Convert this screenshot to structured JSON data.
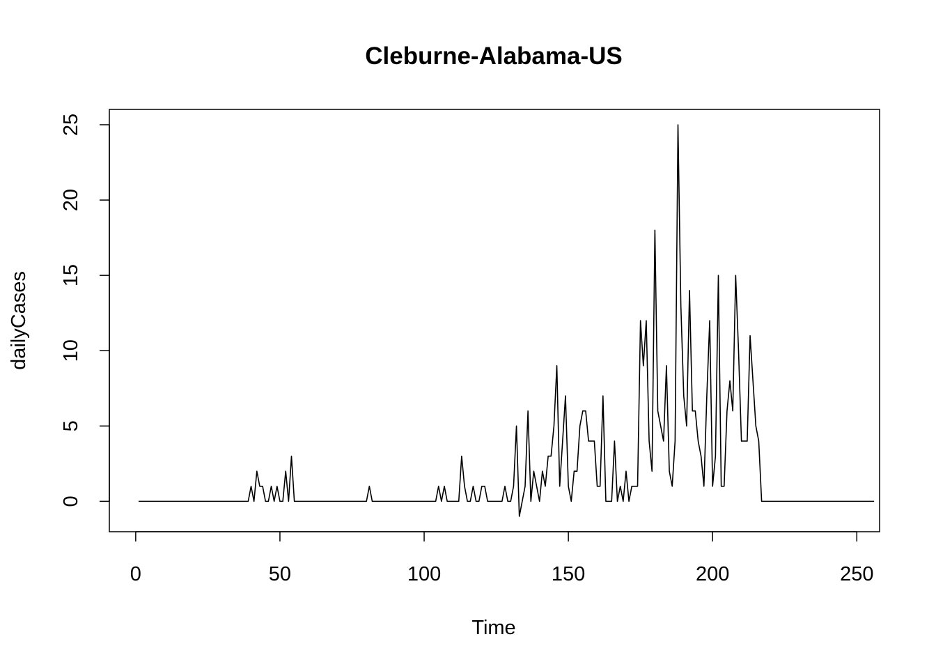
{
  "chart_data": {
    "type": "line",
    "title": "Cleburne-Alabama-US",
    "xlabel": "Time",
    "ylabel": "dailyCases",
    "xlim": [
      1,
      248
    ],
    "ylim": [
      -1,
      25
    ],
    "xticks": [
      0,
      50,
      100,
      150,
      200,
      250
    ],
    "yticks": [
      0,
      5,
      10,
      15,
      20,
      25
    ],
    "grid": false,
    "legend": "none",
    "series": [
      {
        "color": "#000000",
        "x_start": 1,
        "values": [
          0,
          0,
          0,
          0,
          0,
          0,
          0,
          0,
          0,
          0,
          0,
          0,
          0,
          0,
          0,
          0,
          0,
          0,
          0,
          0,
          0,
          0,
          0,
          0,
          0,
          0,
          0,
          0,
          0,
          0,
          0,
          0,
          0,
          0,
          0,
          0,
          0,
          0,
          0,
          1,
          0,
          2,
          1,
          1,
          0,
          0,
          1,
          0,
          1,
          0,
          0,
          2,
          0,
          3,
          0,
          0,
          0,
          0,
          0,
          0,
          0,
          0,
          0,
          0,
          0,
          0,
          0,
          0,
          0,
          0,
          0,
          0,
          0,
          0,
          0,
          0,
          0,
          0,
          0,
          0,
          1,
          0,
          0,
          0,
          0,
          0,
          0,
          0,
          0,
          0,
          0,
          0,
          0,
          0,
          0,
          0,
          0,
          0,
          0,
          0,
          0,
          0,
          0,
          0,
          1,
          0,
          1,
          0,
          0,
          0,
          0,
          0,
          3,
          1,
          0,
          0,
          1,
          0,
          0,
          1,
          1,
          0,
          0,
          0,
          0,
          0,
          0,
          1,
          0,
          0,
          1,
          5,
          -1,
          0,
          1,
          6,
          0,
          2,
          1,
          0,
          2,
          1,
          3,
          3,
          5,
          9,
          1,
          4,
          7,
          1,
          0,
          2,
          2,
          5,
          6,
          6,
          4,
          4,
          4,
          1,
          1,
          7,
          0,
          0,
          0,
          4,
          0,
          1,
          0,
          2,
          0,
          1,
          1,
          1,
          12,
          9,
          12,
          4,
          2,
          18,
          6,
          5,
          4,
          9,
          2,
          1,
          4,
          25,
          13,
          7,
          5,
          14,
          6,
          6,
          4,
          3,
          1,
          7,
          12,
          1,
          3,
          15,
          1,
          1,
          6,
          8,
          6,
          15,
          10,
          4,
          4,
          4,
          11,
          8,
          5,
          4,
          0,
          0,
          0,
          0,
          0,
          0,
          0,
          0,
          0,
          0,
          0,
          0,
          0,
          0,
          0,
          0,
          0,
          0,
          0,
          0,
          0,
          0,
          0,
          0,
          0,
          0,
          0,
          0,
          0,
          0,
          0,
          0,
          0,
          0,
          0,
          0,
          0,
          0,
          0,
          0
        ]
      }
    ]
  }
}
